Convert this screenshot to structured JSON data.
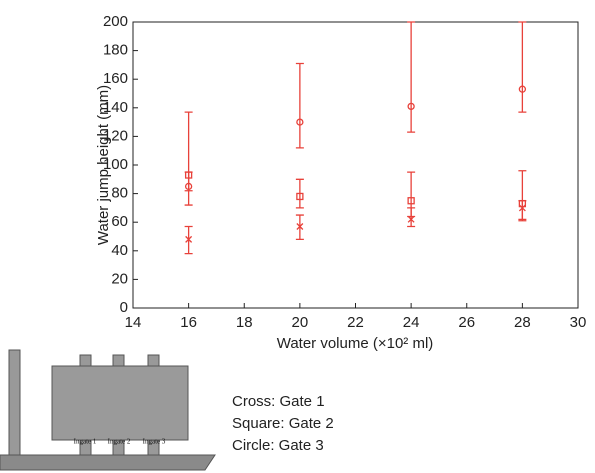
{
  "chart_data": {
    "type": "errorbar",
    "xlabel": "Water volume (×10² ml)",
    "ylabel": "Water jump height (mm)",
    "x": [
      16,
      20,
      24,
      28
    ],
    "xlim": [
      14,
      30
    ],
    "xticks": [
      14,
      16,
      18,
      20,
      22,
      24,
      26,
      28,
      30
    ],
    "ylim": [
      0,
      200
    ],
    "yticks": [
      0,
      20,
      40,
      60,
      80,
      100,
      120,
      140,
      160,
      180,
      200
    ],
    "series": [
      {
        "name": "Cross: Gate 1",
        "marker": "cross",
        "color": "#e8413a",
        "values": [
          48,
          57,
          62,
          70
        ],
        "err_low": [
          38,
          48,
          57,
          61
        ],
        "err_high": [
          57,
          65,
          70,
          75
        ]
      },
      {
        "name": "Square: Gate 2",
        "marker": "square",
        "color": "#e8413a",
        "values": [
          93,
          78,
          75,
          73
        ],
        "err_low": [
          82,
          70,
          64,
          62
        ],
        "err_high": [
          95,
          90,
          95,
          96
        ]
      },
      {
        "name": "Circle: Gate 3",
        "marker": "circle",
        "color": "#e8413a",
        "values": [
          85,
          130,
          141,
          153
        ],
        "err_low": [
          72,
          112,
          123,
          137
        ],
        "err_high": [
          137,
          171,
          200,
          200
        ]
      }
    ]
  },
  "figure_labels": [
    "Ingate 1",
    "Ingate 2",
    "Ingate 3"
  ]
}
